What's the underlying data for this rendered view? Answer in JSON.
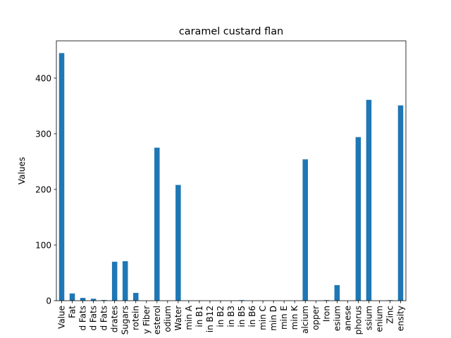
{
  "chart_data": {
    "type": "bar",
    "title": "caramel custard flan",
    "xlabel": "",
    "ylabel": "Values",
    "ylim": [
      0,
      467
    ],
    "yticks": [
      0,
      100,
      200,
      300,
      400
    ],
    "grid": false,
    "bar_color": "#1f77b4",
    "categories": [
      "Value",
      "Fat",
      "d Fats",
      "d Fats",
      "d Fats",
      "drates",
      "Sugars",
      "rotein",
      "y Fiber",
      "esterol",
      "odium",
      "Water",
      "min A",
      "in B1",
      "in B12",
      "in B2",
      "in B3",
      "in B5",
      "in B6",
      "min C",
      "min D",
      "min E",
      "min K",
      "alcium",
      "opper",
      "Iron",
      "esium",
      "anese",
      "phorus",
      "ssium",
      "enium",
      "Zinc",
      "ensity"
    ],
    "values": [
      445,
      13,
      5,
      3.5,
      1.2,
      70,
      71,
      14,
      0,
      275,
      0,
      208,
      0,
      0,
      0,
      0,
      0,
      1,
      0,
      0,
      0,
      0,
      0,
      254,
      0,
      1,
      28,
      0,
      294,
      361,
      0,
      1,
      351
    ]
  }
}
